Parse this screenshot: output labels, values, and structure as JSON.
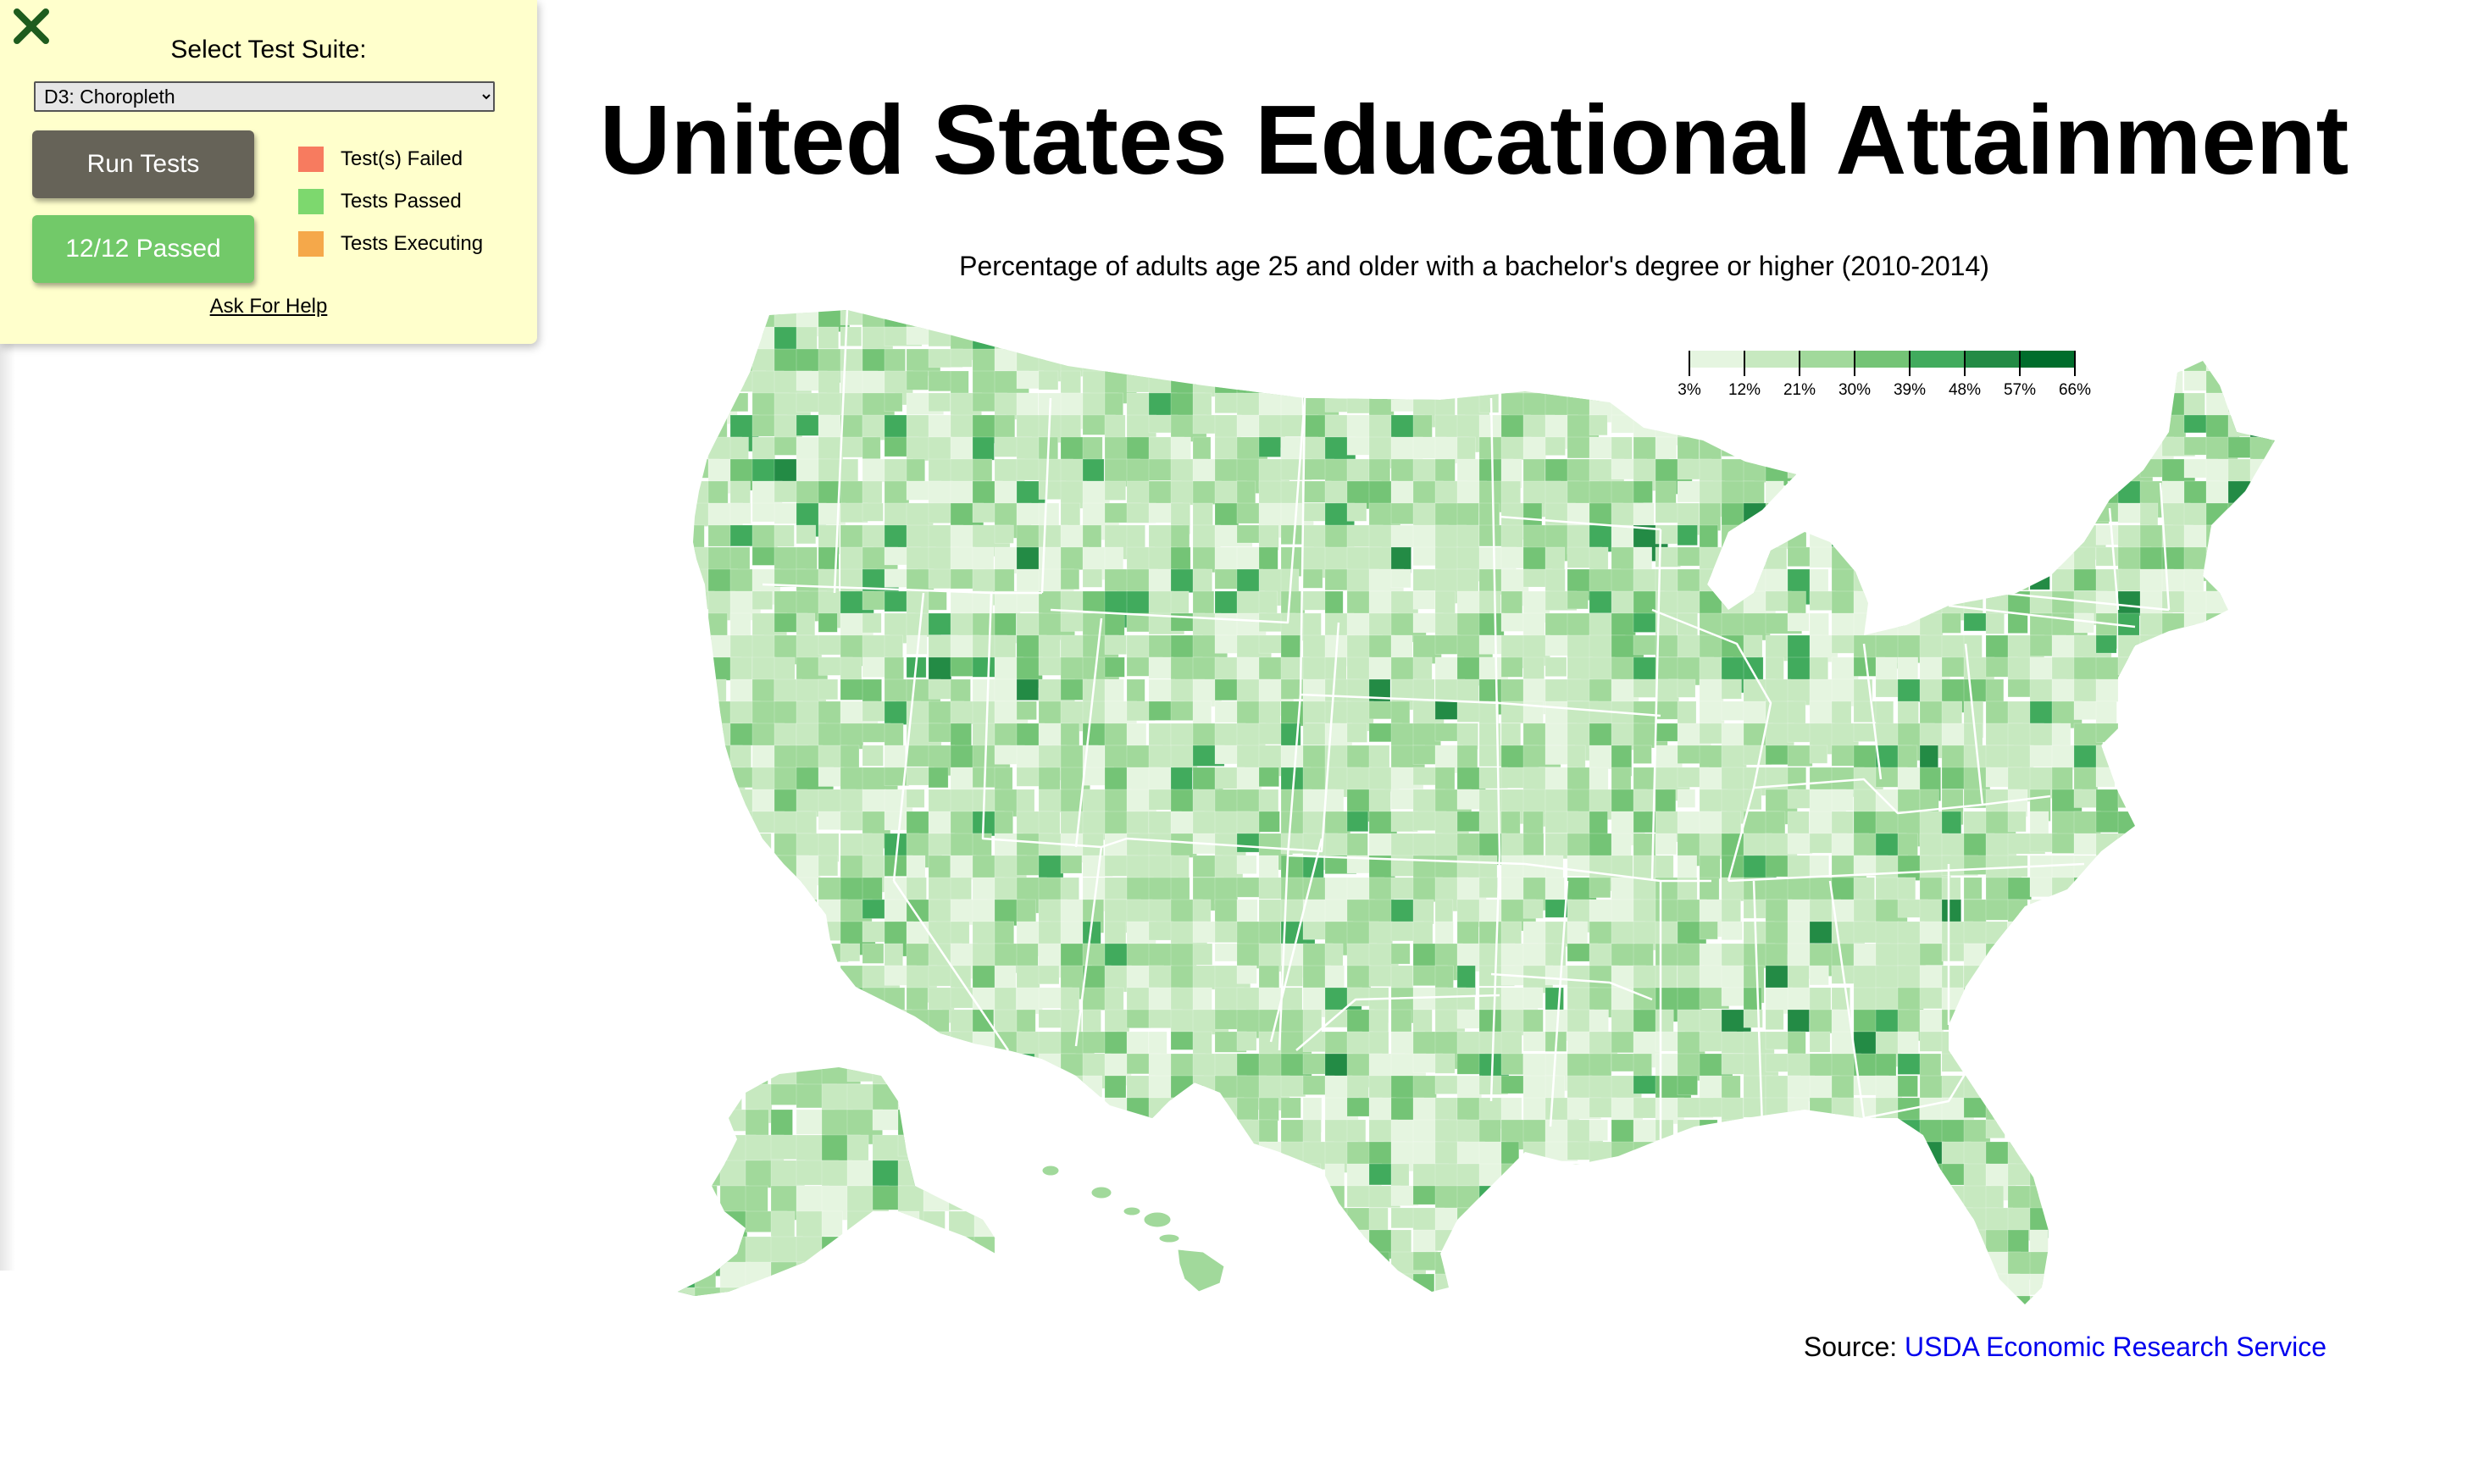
{
  "panel": {
    "suite_label": "Select Test Suite:",
    "suite_selected": "D3: Choropleth",
    "run_button": "Run Tests",
    "status_button": "12/12 Passed",
    "legend": [
      {
        "label": "Test(s) Failed",
        "color": "#f77b5f"
      },
      {
        "label": "Tests Passed",
        "color": "#7dd86e"
      },
      {
        "label": "Tests Executing",
        "color": "#f5a84a"
      }
    ],
    "help_link": "Ask For Help",
    "close_icon": "close-x-icon"
  },
  "title": "United States Educational Attainment",
  "description": "Percentage of adults age 25 and older with a bachelor's degree or higher (2010-2014)",
  "legend_ticks": [
    "3%",
    "12%",
    "21%",
    "30%",
    "39%",
    "48%",
    "57%",
    "66%"
  ],
  "color_scale": [
    "#e5f5e0",
    "#c7e9c0",
    "#a1d99b",
    "#74c476",
    "#41ab5d",
    "#238b45",
    "#006d2c"
  ],
  "source": {
    "prefix": "Source:",
    "link_text": "USDA Economic Research Service"
  }
}
